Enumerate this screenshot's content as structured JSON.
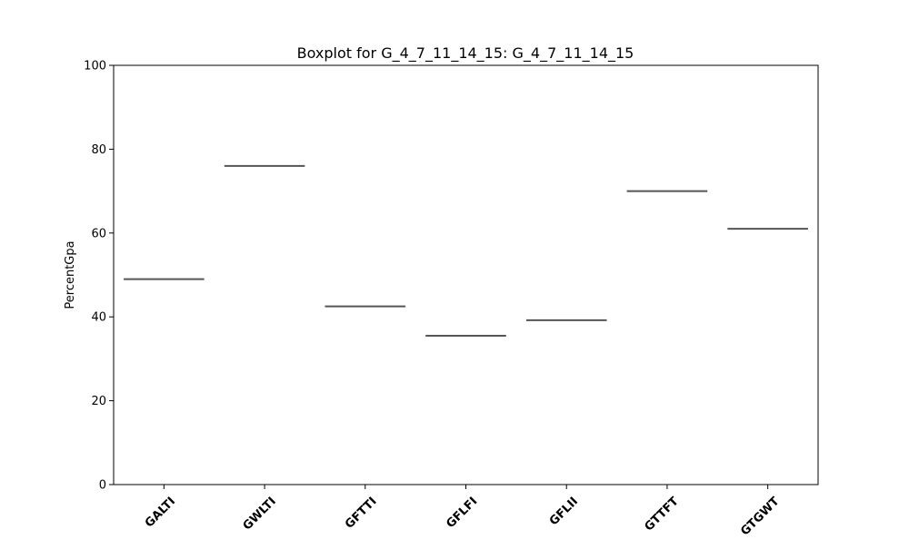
{
  "chart_data": {
    "type": "box",
    "title": "Boxplot for G_4_7_11_14_15: G_4_7_11_14_15",
    "xlabel": "",
    "ylabel": "PercentGpa",
    "ylim": [
      0,
      100
    ],
    "yticks": [
      0,
      20,
      40,
      60,
      80,
      100
    ],
    "grid": false,
    "categories": [
      "GALTI",
      "GWLTI",
      "GFTTI",
      "GFLFI",
      "GFLII",
      "GTTFT",
      "GTGWT"
    ],
    "values": [
      49.0,
      76.0,
      42.5,
      35.5,
      39.2,
      70.0,
      61.0
    ],
    "colors": {
      "median_line": "#555555",
      "axes": "#000000"
    }
  }
}
